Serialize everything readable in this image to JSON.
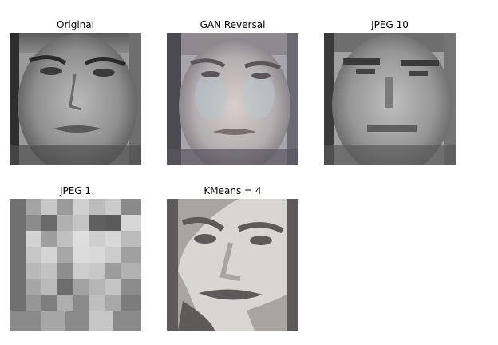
{
  "panels": [
    {
      "title": "Original"
    },
    {
      "title": "GAN Reversal"
    },
    {
      "title": "JPEG 10"
    },
    {
      "title": "JPEG 1"
    },
    {
      "title": "KMeans = 4"
    }
  ]
}
